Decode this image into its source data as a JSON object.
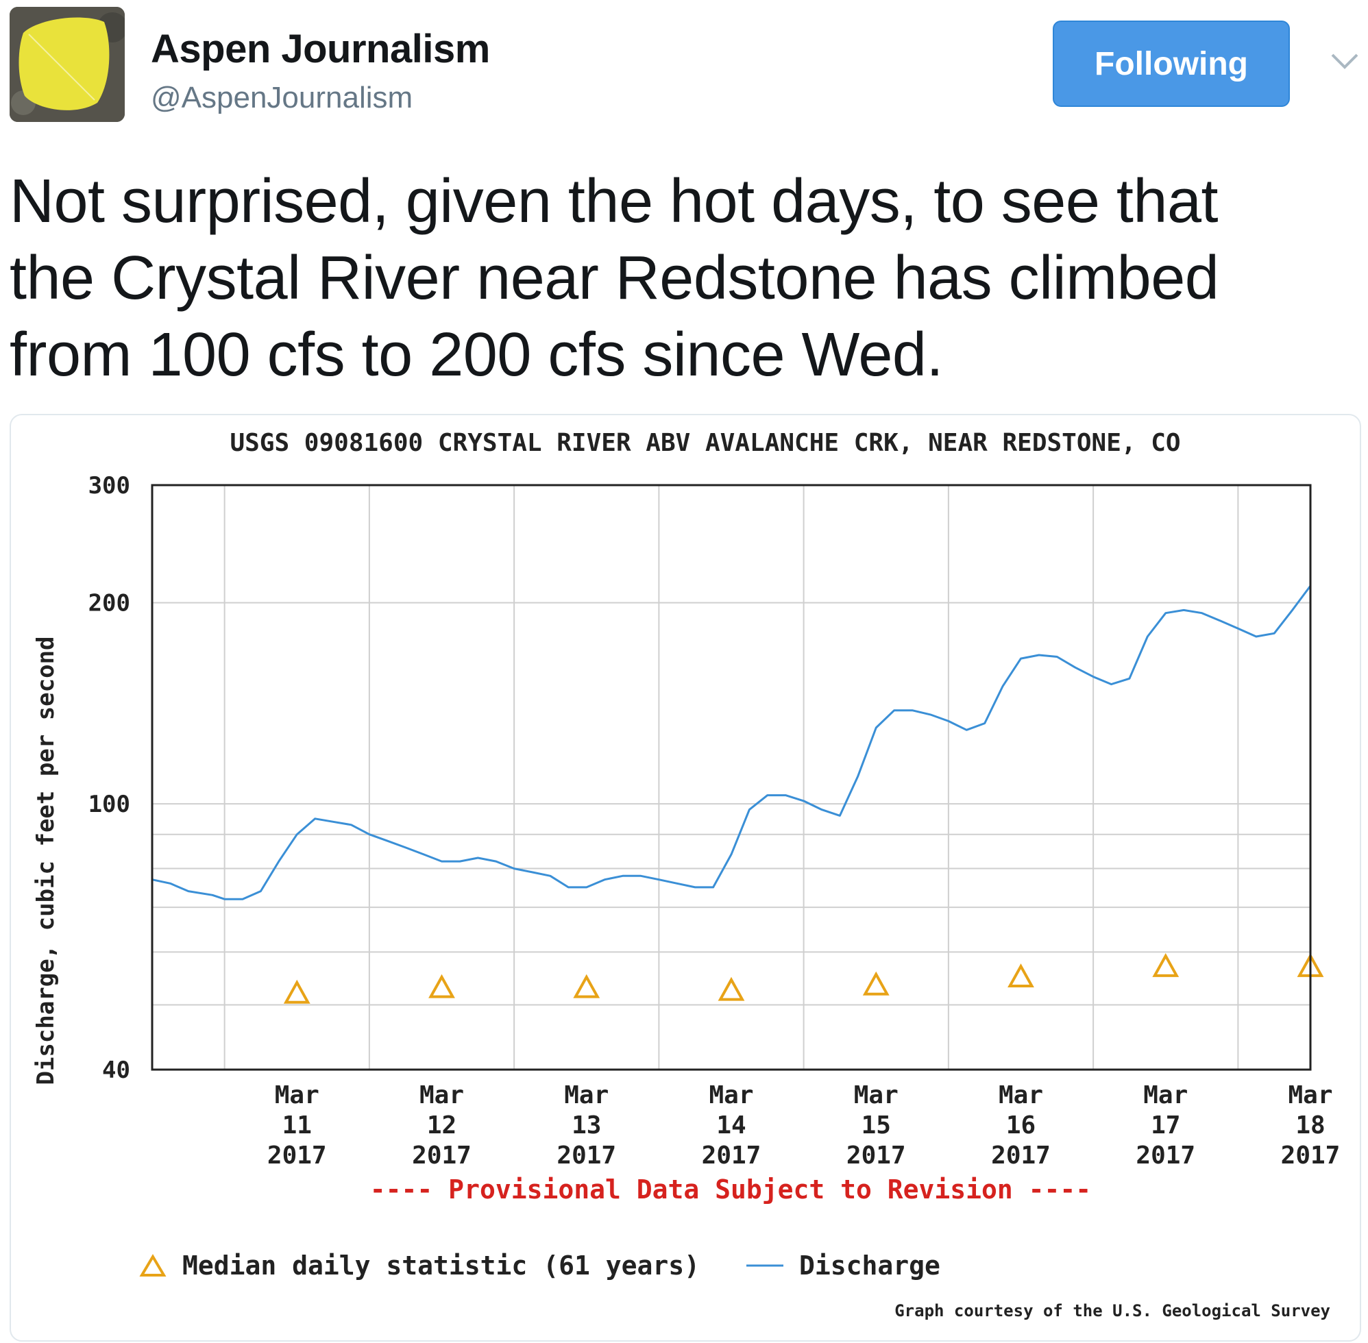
{
  "tweet": {
    "author": {
      "display_name": "Aspen Journalism",
      "handle": "@AspenJournalism",
      "avatar_icon": "aspen-leaf-icon",
      "avatar_color": "#e9e23b"
    },
    "follow_button_label": "Following",
    "menu_icon": "chevron-down-icon",
    "text_lines": [
      "Not surprised, given the hot days, to see that",
      "the Crystal River near Redstone has climbed",
      "from 100 cfs to 200 cfs since Wed."
    ]
  },
  "chart_data": {
    "type": "line",
    "title": "USGS 09081600 CRYSTAL RIVER ABV AVALANCHE CRK, NEAR REDSTONE, CO",
    "ylabel": "Discharge, cubic feet per second",
    "yscale": "log",
    "ylim": [
      40,
      300
    ],
    "y_ticks": [
      {
        "value": 300,
        "label": "300"
      },
      {
        "value": 200,
        "label": "200"
      },
      {
        "value": 100,
        "label": "100"
      },
      {
        "value": 40,
        "label": "40"
      }
    ],
    "y_minor_gridlines": [
      50,
      60,
      70,
      80,
      90
    ],
    "x_range_days": [
      "2017-03-10T12:00",
      "2017-03-18T12:00"
    ],
    "x_ticks": [
      {
        "date": "2017-03-11",
        "lines": [
          "Mar",
          "11",
          "2017"
        ]
      },
      {
        "date": "2017-03-12",
        "lines": [
          "Mar",
          "12",
          "2017"
        ]
      },
      {
        "date": "2017-03-13",
        "lines": [
          "Mar",
          "13",
          "2017"
        ]
      },
      {
        "date": "2017-03-14",
        "lines": [
          "Mar",
          "14",
          "2017"
        ]
      },
      {
        "date": "2017-03-15",
        "lines": [
          "Mar",
          "15",
          "2017"
        ]
      },
      {
        "date": "2017-03-16",
        "lines": [
          "Mar",
          "16",
          "2017"
        ]
      },
      {
        "date": "2017-03-17",
        "lines": [
          "Mar",
          "17",
          "2017"
        ]
      },
      {
        "date": "2017-03-18",
        "lines": [
          "Mar",
          "18",
          "2017"
        ]
      }
    ],
    "grid": true,
    "provisional_note": "---- Provisional Data Subject to Revision ----",
    "credit": "Graph courtesy of the U.S. Geological Survey",
    "legend_placement": "bottom",
    "series": [
      {
        "name": "Discharge",
        "color": "#3a8fd6",
        "marker": "line",
        "legend_label": "Discharge",
        "points": [
          [
            "2017-03-10T12:00",
            77
          ],
          [
            "2017-03-10T15:00",
            76
          ],
          [
            "2017-03-10T18:00",
            74
          ],
          [
            "2017-03-10T22:00",
            73
          ],
          [
            "2017-03-11T00:00",
            72
          ],
          [
            "2017-03-11T03:00",
            72
          ],
          [
            "2017-03-11T06:00",
            74
          ],
          [
            "2017-03-11T09:00",
            82
          ],
          [
            "2017-03-11T12:00",
            90
          ],
          [
            "2017-03-11T15:00",
            95
          ],
          [
            "2017-03-11T18:00",
            94
          ],
          [
            "2017-03-11T21:00",
            93
          ],
          [
            "2017-03-12T00:00",
            90
          ],
          [
            "2017-03-12T03:00",
            88
          ],
          [
            "2017-03-12T06:00",
            86
          ],
          [
            "2017-03-12T09:00",
            84
          ],
          [
            "2017-03-12T12:00",
            82
          ],
          [
            "2017-03-12T15:00",
            82
          ],
          [
            "2017-03-12T18:00",
            83
          ],
          [
            "2017-03-12T21:00",
            82
          ],
          [
            "2017-03-13T00:00",
            80
          ],
          [
            "2017-03-13T03:00",
            79
          ],
          [
            "2017-03-13T06:00",
            78
          ],
          [
            "2017-03-13T09:00",
            75
          ],
          [
            "2017-03-13T12:00",
            75
          ],
          [
            "2017-03-13T15:00",
            77
          ],
          [
            "2017-03-13T18:00",
            78
          ],
          [
            "2017-03-13T21:00",
            78
          ],
          [
            "2017-03-14T00:00",
            77
          ],
          [
            "2017-03-14T03:00",
            76
          ],
          [
            "2017-03-14T06:00",
            75
          ],
          [
            "2017-03-14T09:00",
            75
          ],
          [
            "2017-03-14T12:00",
            84
          ],
          [
            "2017-03-14T15:00",
            98
          ],
          [
            "2017-03-14T18:00",
            103
          ],
          [
            "2017-03-14T21:00",
            103
          ],
          [
            "2017-03-15T00:00",
            101
          ],
          [
            "2017-03-15T03:00",
            98
          ],
          [
            "2017-03-15T06:00",
            96
          ],
          [
            "2017-03-15T09:00",
            110
          ],
          [
            "2017-03-15T12:00",
            130
          ],
          [
            "2017-03-15T15:00",
            138
          ],
          [
            "2017-03-15T18:00",
            138
          ],
          [
            "2017-03-15T21:00",
            136
          ],
          [
            "2017-03-16T00:00",
            133
          ],
          [
            "2017-03-16T03:00",
            129
          ],
          [
            "2017-03-16T06:00",
            132
          ],
          [
            "2017-03-16T09:00",
            150
          ],
          [
            "2017-03-16T12:00",
            165
          ],
          [
            "2017-03-16T15:00",
            167
          ],
          [
            "2017-03-16T18:00",
            166
          ],
          [
            "2017-03-16T21:00",
            160
          ],
          [
            "2017-03-17T00:00",
            155
          ],
          [
            "2017-03-17T03:00",
            151
          ],
          [
            "2017-03-17T06:00",
            154
          ],
          [
            "2017-03-17T09:00",
            178
          ],
          [
            "2017-03-17T12:00",
            193
          ],
          [
            "2017-03-17T15:00",
            195
          ],
          [
            "2017-03-17T18:00",
            193
          ],
          [
            "2017-03-17T21:00",
            188
          ],
          [
            "2017-03-18T00:00",
            183
          ],
          [
            "2017-03-18T03:00",
            178
          ],
          [
            "2017-03-18T06:00",
            180
          ],
          [
            "2017-03-18T09:00",
            195
          ],
          [
            "2017-03-18T12:00",
            212
          ]
        ]
      },
      {
        "name": "Median daily statistic (61 years)",
        "color": "#e8a317",
        "marker": "triangle",
        "legend_label": "Median daily statistic (61 years)",
        "points": [
          [
            "2017-03-11",
            52
          ],
          [
            "2017-03-12",
            53
          ],
          [
            "2017-03-13",
            53
          ],
          [
            "2017-03-14",
            52.5
          ],
          [
            "2017-03-15",
            53.5
          ],
          [
            "2017-03-16",
            55
          ],
          [
            "2017-03-17",
            57
          ],
          [
            "2017-03-18",
            57
          ]
        ]
      }
    ]
  }
}
